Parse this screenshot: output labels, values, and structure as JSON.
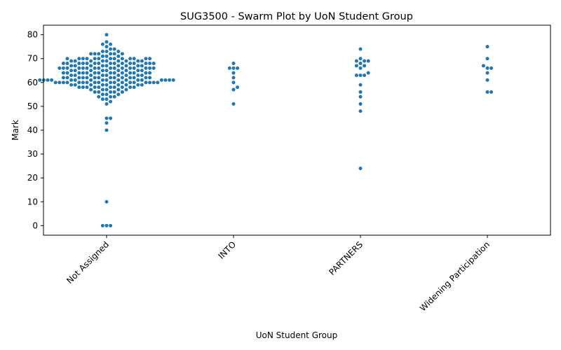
{
  "chart_data": {
    "type": "scatter",
    "subtype": "swarm",
    "title": "SUG3500 - Swarm Plot by UoN Student Group",
    "xlabel": "UoN Student Group",
    "ylabel": "Mark",
    "categories": [
      "Not Assigned",
      "INTO",
      "PARTNERS",
      "Widening Participation"
    ],
    "ylim": [
      -4,
      84
    ],
    "yticks": [
      0,
      10,
      20,
      30,
      40,
      50,
      60,
      70,
      80
    ],
    "color": "#1f77b4",
    "grid": false,
    "series": [
      {
        "category": "Not Assigned",
        "values": [
          80,
          77,
          76,
          76,
          75,
          74,
          74,
          73,
          73,
          73,
          72,
          72,
          72,
          72,
          72,
          72,
          71,
          71,
          71,
          70,
          70,
          70,
          70,
          70,
          70,
          70,
          70,
          70,
          70,
          70,
          70,
          70,
          69,
          69,
          69,
          69,
          69,
          69,
          69,
          69,
          69,
          68,
          68,
          68,
          68,
          68,
          68,
          68,
          68,
          68,
          68,
          68,
          68,
          68,
          68,
          68,
          67,
          67,
          67,
          67,
          67,
          67,
          67,
          67,
          67,
          66,
          66,
          66,
          66,
          66,
          66,
          66,
          66,
          66,
          66,
          66,
          66,
          66,
          66,
          66,
          66,
          65,
          65,
          65,
          65,
          65,
          65,
          65,
          65,
          65,
          64,
          64,
          64,
          64,
          64,
          64,
          64,
          64,
          64,
          64,
          64,
          64,
          64,
          64,
          63,
          63,
          63,
          63,
          63,
          63,
          63,
          63,
          63,
          62,
          62,
          62,
          62,
          62,
          62,
          62,
          62,
          62,
          62,
          62,
          62,
          62,
          62,
          61,
          61,
          61,
          61,
          61,
          61,
          61,
          61,
          61,
          61,
          61,
          61,
          61,
          61,
          61,
          61,
          61,
          60,
          60,
          60,
          60,
          60,
          60,
          60,
          60,
          60,
          60,
          60,
          60,
          60,
          60,
          60,
          60,
          60,
          60,
          59,
          59,
          59,
          59,
          59,
          59,
          59,
          59,
          59,
          58,
          58,
          58,
          58,
          58,
          58,
          58,
          58,
          58,
          58,
          57,
          57,
          57,
          57,
          57,
          56,
          56,
          56,
          56,
          56,
          55,
          55,
          55,
          54,
          54,
          54,
          53,
          53,
          52,
          51,
          45,
          45,
          43,
          40,
          10,
          0,
          0,
          0
        ]
      },
      {
        "category": "INTO",
        "values": [
          68,
          66,
          66,
          66,
          64,
          62,
          60,
          58,
          57,
          51
        ]
      },
      {
        "category": "PARTNERS",
        "values": [
          74,
          70,
          69,
          69,
          69,
          68,
          67,
          67,
          66,
          64,
          63,
          63,
          63,
          59,
          56,
          54,
          51,
          48,
          24
        ]
      },
      {
        "category": "Widening Participation",
        "values": [
          75,
          70,
          67,
          66,
          66,
          64,
          61,
          56,
          56
        ]
      }
    ]
  }
}
